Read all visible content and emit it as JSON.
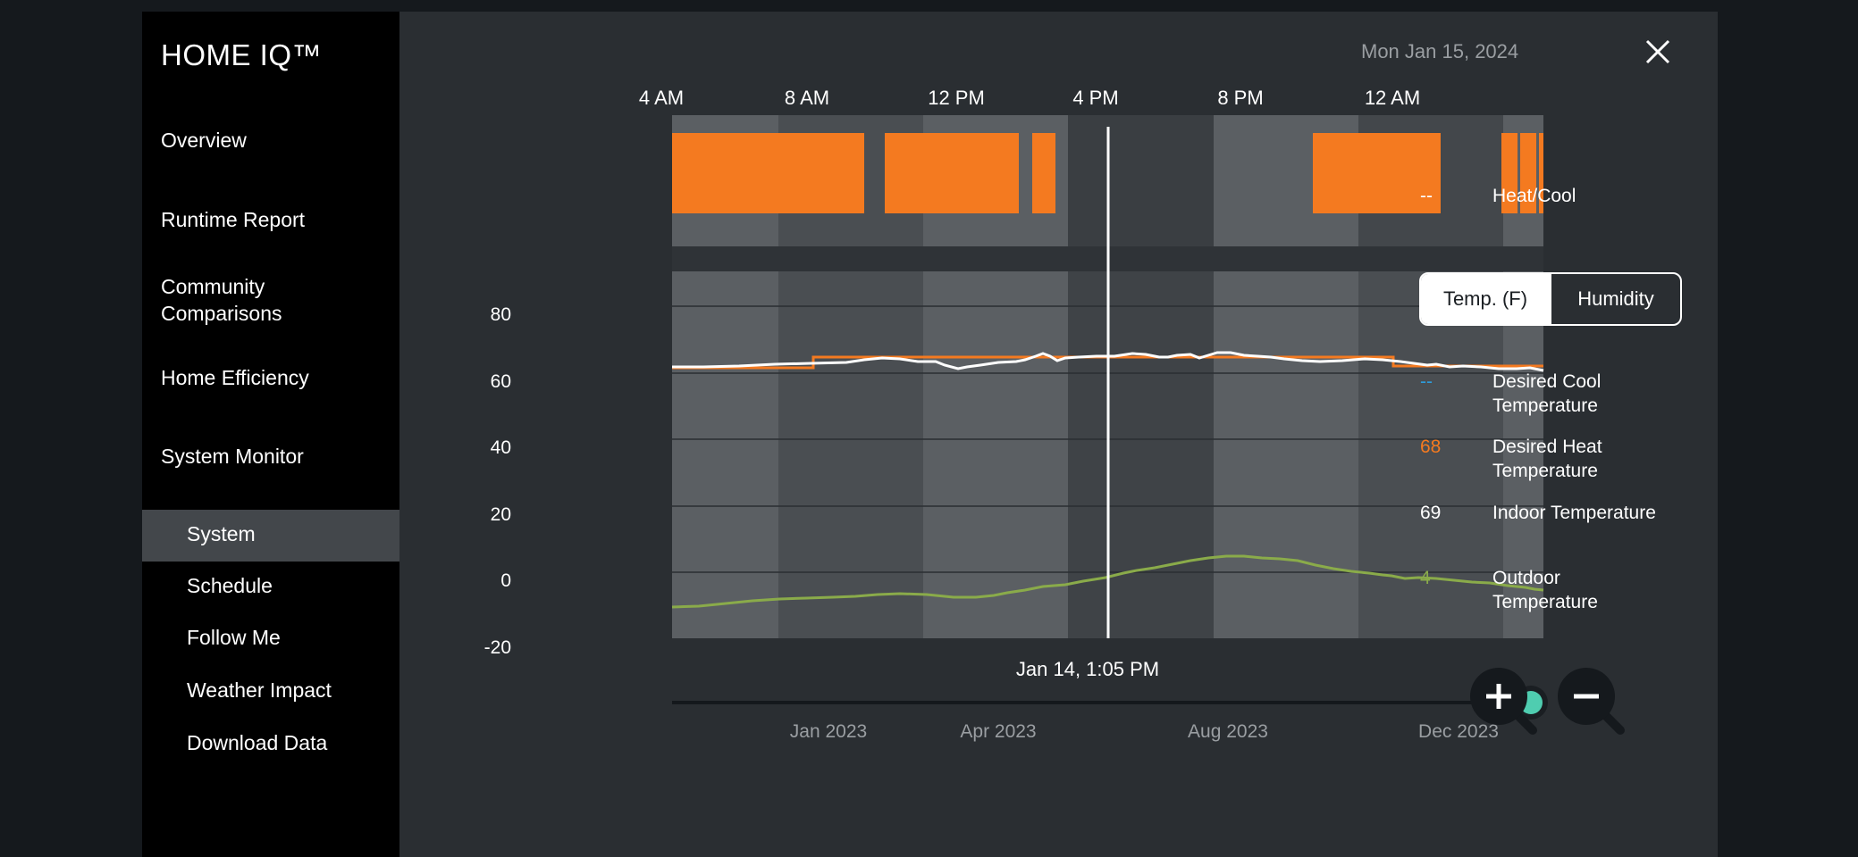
{
  "brand": "HOME IQ™",
  "date": "Mon Jan 15, 2024",
  "nav": [
    {
      "label": "Overview"
    },
    {
      "label": "Runtime Report"
    },
    {
      "label": "Community Comparisons"
    },
    {
      "label": "Home Efficiency"
    },
    {
      "label": "System Monitor"
    }
  ],
  "subnav": [
    {
      "label": "System",
      "active": true
    },
    {
      "label": "Schedule"
    },
    {
      "label": "Follow Me"
    },
    {
      "label": "Weather Impact"
    },
    {
      "label": "Download Data"
    }
  ],
  "time_ticks": [
    "4 AM",
    "8 AM",
    "12 PM",
    "4 PM",
    "8 PM",
    "12 AM"
  ],
  "y_ticks": [
    "80",
    "60",
    "40",
    "20",
    "0",
    "-20"
  ],
  "cursor_label": "Jan 14, 1:05 PM",
  "month_ticks": [
    "Jan 2023",
    "Apr 2023",
    "Aug 2023",
    "Dec 2023"
  ],
  "toggle": {
    "temp": "Temp. (F)",
    "humidity": "Humidity"
  },
  "legend": {
    "heatcool": {
      "value": "--",
      "label": "Heat/Cool"
    },
    "desired_cool": {
      "value": "--",
      "label": "Desired Cool Temperature",
      "color": "#2d9cdb"
    },
    "desired_heat": {
      "value": "68",
      "label": "Desired Heat Temperature",
      "color": "#f47a20"
    },
    "indoor": {
      "value": "69",
      "label": "Indoor Temperature",
      "color": "#ffffff"
    },
    "outdoor": {
      "value": "4",
      "label": "Outdoor Temperature",
      "color": "#8aab4a"
    }
  },
  "colors": {
    "runtime": "#f47a20",
    "slider_handle": "#4fcdb0",
    "panel": "#2a2e32",
    "sidebar": "#000000"
  },
  "icons": {
    "close": "close-icon",
    "zoom_in": "zoom-in-icon",
    "zoom_out": "zoom-out-icon"
  }
}
